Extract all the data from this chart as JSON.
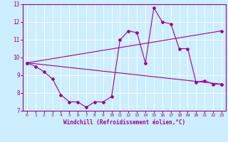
{
  "xlabel": "Windchill (Refroidissement éolien,°C)",
  "bg_color": "#cceeff",
  "line_color": "#990099",
  "x_ticks": [
    0,
    1,
    2,
    3,
    4,
    5,
    6,
    7,
    8,
    9,
    10,
    11,
    12,
    13,
    14,
    15,
    16,
    17,
    18,
    19,
    20,
    21,
    22,
    23
  ],
  "ylim": [
    7,
    13
  ],
  "yticks": [
    7,
    8,
    9,
    10,
    11,
    12,
    13
  ],
  "line1_x": [
    0,
    1,
    2,
    3,
    4,
    5,
    6,
    7,
    8,
    9,
    10,
    11,
    12,
    13,
    14,
    15,
    16,
    17,
    18,
    19,
    20,
    21,
    22,
    23
  ],
  "line1_y": [
    9.7,
    9.5,
    9.2,
    8.8,
    7.9,
    7.5,
    7.5,
    7.2,
    7.5,
    7.5,
    7.8,
    11.0,
    11.5,
    11.4,
    9.7,
    12.8,
    12.0,
    11.9,
    10.5,
    10.5,
    8.6,
    8.7,
    8.5,
    8.5
  ],
  "line2_x": [
    0,
    23
  ],
  "line2_y": [
    9.7,
    8.5
  ],
  "line3_x": [
    0,
    23
  ],
  "line3_y": [
    9.7,
    11.5
  ]
}
